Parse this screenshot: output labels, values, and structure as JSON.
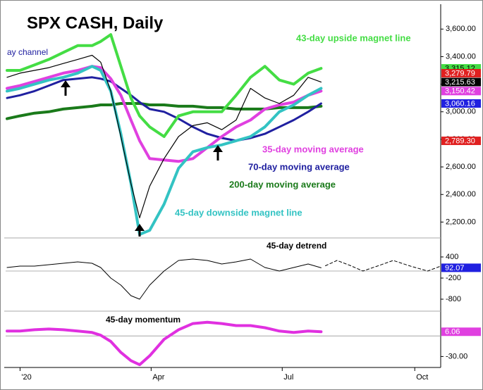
{
  "chart_data": [
    {
      "type": "line",
      "title": "SPX CASH, Daily",
      "annotations": [
        "43-day upside magnet line",
        "ay channel",
        "35-day moving average",
        "70-day moving average",
        "200-day moving average",
        "45-day downside magnet line"
      ],
      "x": [
        -9,
        0,
        10,
        20,
        30,
        40,
        50,
        56,
        63,
        70,
        77,
        83,
        90,
        100,
        110,
        120,
        130,
        140,
        150,
        160,
        170,
        180,
        190,
        200,
        209
      ],
      "xlim": [
        -10,
        292
      ],
      "ylim": [
        2100,
        3770
      ],
      "yticks": [
        {
          "value": 2200,
          "label": "2,200.00"
        },
        {
          "value": 2400,
          "label": "2,400.00"
        },
        {
          "value": 2600,
          "label": "2,600.00"
        },
        {
          "value": 2800,
          "label": "2,800.00"
        },
        {
          "value": 3000,
          "label": "3,000.00"
        },
        {
          "value": 3200,
          "label": "3,200.00"
        },
        {
          "value": 3400,
          "label": "3,400.00"
        },
        {
          "value": 3600,
          "label": "3,600.00"
        }
      ],
      "series": [
        {
          "color": "#1a7a1a",
          "width": 4,
          "values": [
            2950,
            2970,
            2990,
            3000,
            3020,
            3030,
            3040,
            3050,
            3050,
            3060,
            3060,
            3060,
            3050,
            3050,
            3040,
            3040,
            3030,
            3030,
            3020,
            3020,
            3020,
            3030,
            3030,
            3030,
            3040
          ]
        },
        {
          "color": "#2020a0",
          "width": 3,
          "values": [
            3100,
            3120,
            3150,
            3190,
            3230,
            3240,
            3250,
            3240,
            3220,
            3170,
            3120,
            3070,
            3020,
            3000,
            2950,
            2890,
            2840,
            2810,
            2790,
            2810,
            2840,
            2890,
            2940,
            3000,
            3060.16
          ]
        },
        {
          "color": "#e040e0",
          "width": 4,
          "values": [
            3170,
            3190,
            3220,
            3250,
            3280,
            3300,
            3330,
            3320,
            3240,
            3120,
            2940,
            2790,
            2660,
            2650,
            2640,
            2660,
            2740,
            2820,
            2890,
            2940,
            3020,
            3050,
            3070,
            3120,
            3150.42
          ]
        },
        {
          "color": "#33c3c3",
          "width": 4,
          "values": [
            3150,
            3170,
            3200,
            3230,
            3250,
            3280,
            3330,
            3300,
            3150,
            2840,
            2480,
            2110,
            2140,
            2330,
            2590,
            2710,
            2740,
            2760,
            2790,
            2820,
            2890,
            3000,
            3050,
            3120,
            3170
          ]
        },
        {
          "color": "#44dd44",
          "width": 4,
          "values": [
            3300,
            3300,
            3340,
            3380,
            3430,
            3480,
            3480,
            3510,
            3560,
            3330,
            3100,
            2970,
            2890,
            2820,
            2970,
            3000,
            3000,
            3000,
            3120,
            3250,
            3330,
            3230,
            3200,
            3280,
            3315.12
          ]
        },
        {
          "color": "#000000",
          "width": 1.2,
          "values": [
            3250,
            3280,
            3300,
            3320,
            3350,
            3380,
            3410,
            3360,
            3150,
            2820,
            2480,
            2230,
            2460,
            2660,
            2820,
            2900,
            2920,
            2870,
            2940,
            3170,
            3100,
            3060,
            3120,
            3250,
            3215.63
          ]
        }
      ],
      "last_values": [
        {
          "value": 3315.12,
          "label": "3,315.12",
          "color": "#44dd44"
        },
        {
          "value": 3279.79,
          "label": "3,279.79",
          "color": "#e02020"
        },
        {
          "value": 3215.63,
          "label": "3,215.63",
          "color": "#000000"
        },
        {
          "value": 3150.42,
          "label": "3,150.42",
          "color": "#e040e0"
        },
        {
          "value": 3060.16,
          "label": "3,060.16",
          "color": "#2020e0"
        },
        {
          "value": 2789.3,
          "label": "2,789.30",
          "color": "#e02020"
        }
      ]
    },
    {
      "type": "line",
      "title": "45-day detrend",
      "x": [
        -9,
        0,
        10,
        20,
        30,
        40,
        50,
        56,
        63,
        70,
        77,
        83,
        90,
        100,
        110,
        120,
        130,
        140,
        150,
        160,
        170,
        180,
        190,
        200,
        209
      ],
      "xlim": [
        -10,
        292
      ],
      "ylim": [
        -1100,
        900
      ],
      "yticks": [
        -800,
        -200,
        400
      ],
      "series": [
        {
          "color": "#000000",
          "width": 1,
          "values": [
            100,
            140,
            140,
            180,
            220,
            260,
            220,
            100,
            -200,
            -400,
            -700,
            -800,
            -400,
            0,
            300,
            340,
            300,
            200,
            260,
            340,
            100,
            0,
            100,
            200,
            92.07
          ]
        },
        {
          "color": "#000000",
          "width": 1,
          "dashed": true,
          "x": [
            212,
            220,
            229,
            238,
            248,
            259,
            271,
            283,
            292
          ],
          "values": [
            150,
            300,
            160,
            0,
            140,
            300,
            140,
            0,
            140
          ]
        }
      ],
      "last_values": [
        {
          "value": 92.07,
          "label": "92.07",
          "color": "#2020e0"
        }
      ]
    },
    {
      "type": "line",
      "title": "45-day momentum",
      "x": [
        -9,
        0,
        10,
        20,
        30,
        40,
        50,
        56,
        63,
        70,
        77,
        83,
        90,
        100,
        110,
        120,
        130,
        140,
        150,
        160,
        170,
        180,
        190,
        200,
        209
      ],
      "xlim": [
        -10,
        292
      ],
      "ylim": [
        -46,
        33
      ],
      "yticks": [
        {
          "value": -30,
          "label": "-30.00"
        }
      ],
      "xticks": [
        {
          "value": 0,
          "label": "'20"
        },
        {
          "value": 91,
          "label": "Apr"
        },
        {
          "value": 182,
          "label": "Jul"
        },
        {
          "value": 274,
          "label": "Oct"
        }
      ],
      "series": [
        {
          "color": "#e030e0",
          "width": 4,
          "values": [
            7,
            7,
            9,
            10,
            9,
            7,
            5,
            1,
            -8,
            -24,
            -36,
            -42,
            -29,
            -5,
            9,
            18,
            20,
            18,
            15,
            15,
            12,
            7,
            5,
            7,
            6.06
          ]
        }
      ],
      "last_values": [
        {
          "value": 6.06,
          "label": "6.06",
          "color": "#e040e0"
        }
      ]
    }
  ]
}
